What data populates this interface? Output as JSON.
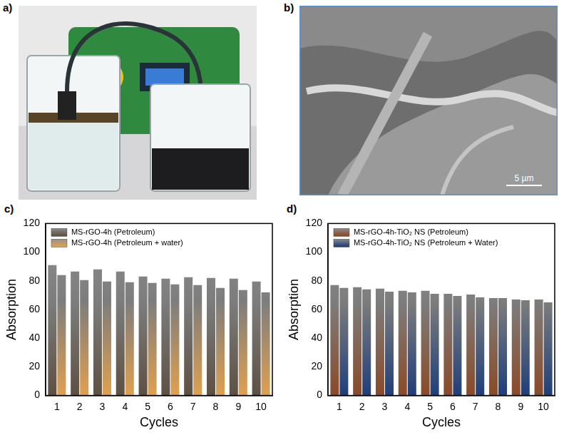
{
  "images": [
    {
      "panel": "a)"
    },
    {
      "panel": "b)",
      "scale_bar": "5 µm"
    }
  ],
  "chart_data": [
    {
      "panel": "c)",
      "type": "bar",
      "categories": [
        "1",
        "2",
        "3",
        "4",
        "5",
        "6",
        "7",
        "8",
        "9",
        "10"
      ],
      "series": [
        {
          "name": "MS-rGO-4h (Petroleum)",
          "color": "#5e5043",
          "values": [
            91,
            86.5,
            88,
            86.5,
            83,
            81.5,
            82.5,
            82,
            81.5,
            79.5
          ]
        },
        {
          "name": "MS-rGO-4h (Petroleum + water)",
          "color": "#e0a050",
          "values": [
            84,
            80.5,
            79.5,
            79,
            78.5,
            77.5,
            77,
            75,
            73.5,
            72
          ]
        }
      ],
      "x_label": "Cycles",
      "y_label": "Absorption",
      "ylim": [
        0,
        120
      ],
      "yticks": [
        0,
        20,
        40,
        60,
        80,
        100,
        120
      ],
      "grid": false,
      "legend": "upper left"
    },
    {
      "panel": "d)",
      "type": "bar",
      "categories": [
        "1",
        "2",
        "3",
        "4",
        "5",
        "6",
        "7",
        "8",
        "9",
        "10"
      ],
      "series": [
        {
          "name": "MS-rGO-4h-TiO₂ NS (Petroleum)",
          "color": "#8a4a28",
          "values": [
            77,
            75.5,
            74.5,
            73,
            73,
            71,
            70.5,
            68,
            67,
            67
          ]
        },
        {
          "name": "MS-rGO-4h-TiO₂ NS (Petroleum + Water)",
          "color": "#1f3f7a",
          "values": [
            75,
            74,
            72.5,
            72,
            71,
            69.5,
            68.5,
            68,
            66.5,
            65
          ]
        }
      ],
      "x_label": "Cycles",
      "y_label": "Absorption",
      "ylim": [
        0,
        120
      ],
      "yticks": [
        0,
        20,
        40,
        60,
        80,
        100,
        120
      ],
      "grid": false,
      "legend": "upper left"
    }
  ]
}
